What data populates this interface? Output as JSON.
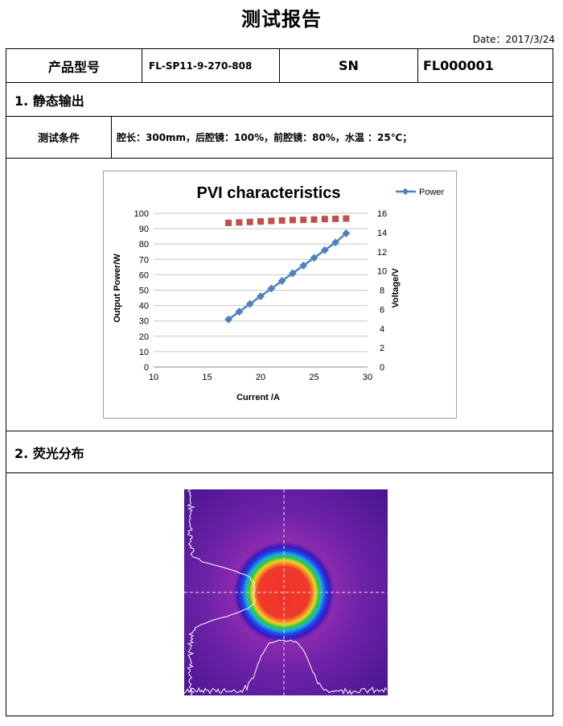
{
  "header": {
    "title": "测试报告",
    "date": "Date：2017/3/24"
  },
  "info_row": {
    "model_label": "产品型号",
    "model_value": "FL-SP11-9-270-808",
    "sn_label": "SN",
    "sn_value": "FL000001"
  },
  "section1": {
    "title": "1.  静态输出",
    "condition_label": "测试条件",
    "condition_value": "腔长：300mm，后腔镜：100%，前腔镜：80%，水温 ：25℃；"
  },
  "section2": {
    "title": "2.  荧光分布"
  },
  "chart_data": {
    "type": "line",
    "title": "PVI characteristics",
    "xlabel": "Current /A",
    "ylabel": "Output Power/W",
    "y2label": "Voltage/V",
    "xlim": [
      10,
      30
    ],
    "ylim": [
      0,
      100
    ],
    "y2lim": [
      0,
      16
    ],
    "xticks": [
      "10",
      "15",
      "20",
      "25",
      "30"
    ],
    "yticks": [
      "0",
      "10",
      "20",
      "30",
      "40",
      "50",
      "60",
      "70",
      "80",
      "90",
      "100"
    ],
    "y2ticks": [
      "0",
      "2",
      "4",
      "6",
      "8",
      "10",
      "12",
      "14",
      "16"
    ],
    "grid": true,
    "legend_position": "top-right",
    "legend": [
      "Power"
    ],
    "series": [
      {
        "name": "Power",
        "axis": "left",
        "color": "#4f81bd",
        "marker": "diamond",
        "x": [
          17,
          18,
          19,
          20,
          21,
          22,
          23,
          24,
          25,
          26,
          27,
          28
        ],
        "values": [
          31,
          36,
          41,
          46,
          51,
          56,
          61,
          66,
          71,
          76,
          81,
          87
        ]
      },
      {
        "axis": "right",
        "color": "#c0504d",
        "marker": "square",
        "x": [
          17,
          18,
          19,
          20,
          21,
          22,
          23,
          24,
          25,
          26,
          27,
          28
        ],
        "values": [
          15.0,
          15.05,
          15.1,
          15.15,
          15.2,
          15.25,
          15.3,
          15.32,
          15.35,
          15.4,
          15.42,
          15.45
        ]
      }
    ]
  }
}
